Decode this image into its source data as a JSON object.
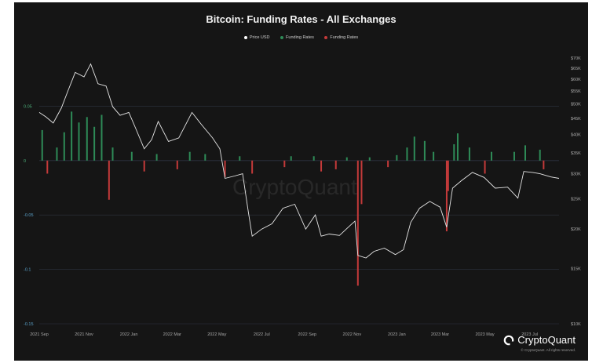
{
  "colors": {
    "background": "#151515",
    "price_line": "#e6e6e6",
    "funding_positive": "#2e8b57",
    "funding_negative": "#c43a3a",
    "grid": "#2e3440"
  },
  "brand": {
    "name": "CryptoQuant",
    "copyright": "© CryptoQuant. All rights reserved.",
    "watermark": "CryptoQuant",
    "icon": "cryptoquant-logo-icon"
  },
  "chart_data": {
    "type": "bar",
    "title": "Bitcoin: Funding Rates - All Exchanges",
    "legend_position": "top-center",
    "x_ticks": [
      "2021 Sep",
      "2021 Nov",
      "2022 Jan",
      "2022 Mar",
      "2022 May",
      "2022 Jul",
      "2022 Sep",
      "2022 Nov",
      "2023 Jan",
      "2023 Mar",
      "2023 May",
      "2023 Jul"
    ],
    "x_range": [
      "2021-09-01",
      "2023-08-10"
    ],
    "y_left_ticks": [
      "0.05",
      "0",
      "-0.05",
      "-0.1",
      "-0.15"
    ],
    "y_left_range": [
      -0.15,
      0.1
    ],
    "y_right_ticks": [
      "$70K",
      "$65K",
      "$60K",
      "$55K",
      "$50K",
      "$45K",
      "$40K",
      "$35K",
      "$30K",
      "$25K",
      "$20K",
      "$15K",
      "$10K"
    ],
    "y_right_scale": "log",
    "y_right_range": [
      10000,
      70000
    ],
    "grid": true,
    "series": [
      {
        "name": "Price USD",
        "type": "line",
        "axis": "right",
        "x": [
          "2021-09-01",
          "2021-09-10",
          "2021-09-20",
          "2021-10-01",
          "2021-10-10",
          "2021-10-20",
          "2021-11-01",
          "2021-11-10",
          "2021-11-20",
          "2021-12-01",
          "2021-12-10",
          "2021-12-20",
          "2022-01-01",
          "2022-01-10",
          "2022-01-22",
          "2022-02-01",
          "2022-02-10",
          "2022-02-24",
          "2022-03-10",
          "2022-03-28",
          "2022-04-10",
          "2022-04-25",
          "2022-05-05",
          "2022-05-12",
          "2022-05-25",
          "2022-06-05",
          "2022-06-13",
          "2022-06-18",
          "2022-07-01",
          "2022-07-15",
          "2022-07-30",
          "2022-08-15",
          "2022-08-30",
          "2022-09-12",
          "2022-09-20",
          "2022-10-01",
          "2022-10-15",
          "2022-10-30",
          "2022-11-05",
          "2022-11-09",
          "2022-11-20",
          "2022-12-01",
          "2022-12-15",
          "2022-12-30",
          "2023-01-10",
          "2023-01-20",
          "2023-02-01",
          "2023-02-15",
          "2023-03-01",
          "2023-03-10",
          "2023-03-18",
          "2023-03-30",
          "2023-04-14",
          "2023-04-30",
          "2023-05-15",
          "2023-06-01",
          "2023-06-15",
          "2023-06-23",
          "2023-07-05",
          "2023-07-15",
          "2023-07-30",
          "2023-08-10"
        ],
        "values": [
          47000,
          45500,
          43500,
          48500,
          55000,
          63000,
          61000,
          67000,
          58000,
          57000,
          49000,
          46000,
          47000,
          42000,
          36000,
          38500,
          44000,
          38000,
          39000,
          47000,
          43000,
          39000,
          36000,
          29000,
          29500,
          30000,
          22500,
          19000,
          20000,
          20800,
          23300,
          24000,
          20000,
          22200,
          19000,
          19300,
          19100,
          20600,
          21200,
          16500,
          16200,
          17000,
          17400,
          16600,
          17200,
          21000,
          23300,
          24500,
          23500,
          20300,
          27000,
          28500,
          30300,
          29200,
          27000,
          27200,
          25100,
          30500,
          30300,
          30000,
          29300,
          29000
        ]
      },
      {
        "name": "Funding Rates",
        "type": "bar",
        "axis": "left",
        "sign": "positive",
        "x": [
          "2021-09-05",
          "2021-09-25",
          "2021-10-05",
          "2021-10-15",
          "2021-10-25",
          "2021-11-05",
          "2021-11-15",
          "2021-11-25",
          "2021-12-10",
          "2022-01-05",
          "2022-02-08",
          "2022-03-25",
          "2022-04-15",
          "2022-06-01",
          "2022-08-10",
          "2022-09-10",
          "2022-10-25",
          "2022-11-25",
          "2023-01-01",
          "2023-01-15",
          "2023-01-25",
          "2023-02-08",
          "2023-02-20",
          "2023-03-20",
          "2023-03-25",
          "2023-04-10",
          "2023-05-10",
          "2023-06-10",
          "2023-06-25",
          "2023-07-15"
        ],
        "values": [
          0.028,
          0.012,
          0.026,
          0.045,
          0.035,
          0.04,
          0.031,
          0.042,
          0.012,
          0.008,
          0.006,
          0.008,
          0.006,
          0.004,
          0.004,
          0.004,
          0.003,
          0.003,
          0.005,
          0.012,
          0.022,
          0.018,
          0.008,
          0.015,
          0.025,
          0.012,
          0.008,
          0.008,
          0.014,
          0.01
        ]
      },
      {
        "name": "Funding Rates",
        "type": "bar",
        "axis": "left",
        "sign": "negative",
        "x": [
          "2021-09-12",
          "2021-12-05",
          "2022-01-22",
          "2022-03-08",
          "2022-05-12",
          "2022-06-18",
          "2022-08-01",
          "2022-09-20",
          "2022-10-10",
          "2022-11-09",
          "2022-11-14",
          "2022-12-20",
          "2023-03-10",
          "2023-03-12",
          "2023-05-01",
          "2023-07-20"
        ],
        "values": [
          -0.012,
          -0.036,
          -0.01,
          -0.008,
          -0.015,
          -0.012,
          -0.006,
          -0.01,
          -0.008,
          -0.115,
          -0.04,
          -0.006,
          -0.065,
          -0.028,
          -0.012,
          -0.008
        ]
      }
    ]
  }
}
